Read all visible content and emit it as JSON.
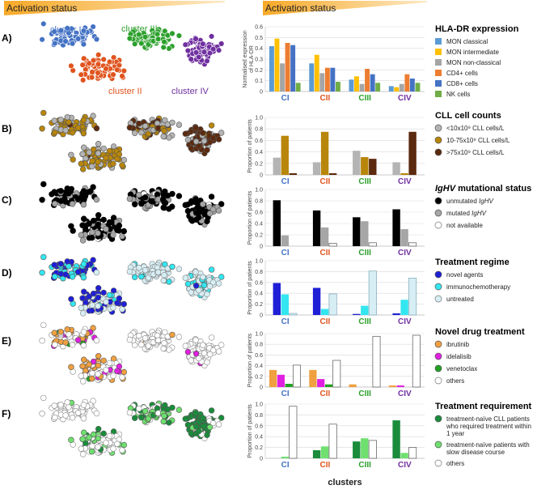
{
  "header": {
    "left_label": "Activation status",
    "right_label": "Activation status",
    "gradient_color": "#f7a928"
  },
  "xlabel": "clusters",
  "clusters": [
    "CI",
    "CII",
    "CIII",
    "CIV"
  ],
  "cluster_colors": [
    "#4472c4",
    "#e0541e",
    "#2ca02c",
    "#7030a0"
  ],
  "cluster_names": [
    "cluster I",
    "cluster II",
    "cluster III",
    "cluster IV"
  ],
  "chart_data": [
    {
      "panel": "A)",
      "type": "bar",
      "ylabel": "Normalised expression of HLA-DR",
      "ylim": [
        0,
        0.6
      ],
      "yticks": [
        "0",
        "0.1",
        "0.2",
        "0.3",
        "0.4",
        "0.5",
        "0.6"
      ],
      "categories": [
        "CI",
        "CII",
        "CIII",
        "CIV"
      ],
      "series": [
        {
          "name": "MON classical",
          "color": "#5b9bd5",
          "fill": "#5b9bd5",
          "values": [
            0.42,
            0.26,
            0.11,
            0.05
          ]
        },
        {
          "name": "MON intermediate",
          "color": "#ffc000",
          "fill": "#ffc000",
          "values": [
            0.49,
            0.34,
            0.14,
            0.04
          ]
        },
        {
          "name": "MON non-classical",
          "color": "#a5a5a5",
          "fill": "#a5a5a5",
          "values": [
            0.26,
            0.17,
            0.07,
            0.07
          ]
        },
        {
          "name": "CD4+ cells",
          "color": "#ed7d31",
          "fill": "#ed7d31",
          "values": [
            0.45,
            0.22,
            0.21,
            0.16
          ]
        },
        {
          "name": "CD8+ cells",
          "color": "#4472c4",
          "fill": "#4472c4",
          "values": [
            0.43,
            0.22,
            0.16,
            0.12
          ]
        },
        {
          "name": "NK cells",
          "color": "#70ad47",
          "fill": "#70ad47",
          "values": [
            0.08,
            0.09,
            0.08,
            0.08
          ]
        }
      ],
      "legend_title": "HLA-DR expression"
    },
    {
      "panel": "B)",
      "type": "bar",
      "ylabel": "Proportion of patients",
      "ylim": [
        0,
        1.0
      ],
      "yticks": [
        "0",
        "0.2",
        "0.4",
        "0.6",
        "0.8",
        "1.0"
      ],
      "categories": [
        "CI",
        "CII",
        "CIII",
        "CIV"
      ],
      "series": [
        {
          "name": "<10x10⁹ CLL cells/L",
          "color": "#b4b4b4",
          "fill": "#b4b4b4",
          "values": [
            0.3,
            0.22,
            0.42,
            0.22
          ]
        },
        {
          "name": "10-75x10⁹ CLL cells/L",
          "color": "#b8860b",
          "fill": "#b8860b",
          "values": [
            0.68,
            0.75,
            0.31,
            0.03
          ]
        },
        {
          "name": ">75x10⁹ CLL cells/L",
          "color": "#5c2a0e",
          "fill": "#5c2a0e",
          "values": [
            0.03,
            0.03,
            0.28,
            0.75
          ]
        }
      ],
      "legend_title": "CLL cell counts"
    },
    {
      "panel": "C)",
      "type": "bar",
      "ylabel": "Proportion of patients",
      "ylim": [
        0,
        1.0
      ],
      "yticks": [
        "0",
        "0.2",
        "0.4",
        "0.6",
        "0.8",
        "1.0"
      ],
      "categories": [
        "CI",
        "CII",
        "CIII",
        "CIV"
      ],
      "series": [
        {
          "name": "unmutated IgHV",
          "color": "#000000",
          "fill": "#000000",
          "values": [
            0.81,
            0.63,
            0.51,
            0.65
          ]
        },
        {
          "name": "mutated IgHV",
          "color": "#a6a6a6",
          "fill": "#a6a6a6",
          "values": [
            0.19,
            0.33,
            0.44,
            0.3
          ]
        },
        {
          "name": "not available",
          "color": "#555555",
          "fill": "#ffffff",
          "values": [
            0.0,
            0.05,
            0.06,
            0.06
          ]
        }
      ],
      "legend_title": "IgHV mutational status"
    },
    {
      "panel": "D)",
      "type": "bar",
      "ylabel": "Proportion of patients",
      "ylim": [
        0,
        1.0
      ],
      "yticks": [
        "0",
        "0.2",
        "0.4",
        "0.6",
        "0.8",
        "1.0"
      ],
      "categories": [
        "CI",
        "CII",
        "CIII",
        "CIV"
      ],
      "series": [
        {
          "name": "novel agents",
          "color": "#1f1fd6",
          "fill": "#1f1fd6",
          "values": [
            0.59,
            0.5,
            0.02,
            0.03
          ]
        },
        {
          "name": "immunochemotherapy",
          "color": "#33e6f0",
          "fill": "#33e6f0",
          "values": [
            0.38,
            0.11,
            0.17,
            0.28
          ]
        },
        {
          "name": "untreated",
          "color": "#7fa7b8",
          "fill": "#d6eef4",
          "values": [
            0.03,
            0.39,
            0.81,
            0.68
          ]
        }
      ],
      "legend_title": "Treatment regime"
    },
    {
      "panel": "E)",
      "type": "bar",
      "ylabel": "Proportion of patients",
      "ylim": [
        0,
        1.0
      ],
      "yticks": [
        "0",
        "0.2",
        "0.4",
        "0.6",
        "0.8",
        "1.0"
      ],
      "categories": [
        "CI",
        "CII",
        "CIII",
        "CIV"
      ],
      "series": [
        {
          "name": "ibrutinib",
          "color": "#f0a040",
          "fill": "#f0a040",
          "values": [
            0.32,
            0.32,
            0.05,
            0.03
          ]
        },
        {
          "name": "idelalisib",
          "color": "#e020e0",
          "fill": "#e020e0",
          "values": [
            0.23,
            0.15,
            0.0,
            0.03
          ]
        },
        {
          "name": "venetoclax",
          "color": "#22a022",
          "fill": "#22a022",
          "values": [
            0.06,
            0.05,
            0.0,
            0.0
          ]
        },
        {
          "name": "others",
          "color": "#555555",
          "fill": "#ffffff",
          "values": [
            0.41,
            0.5,
            0.95,
            0.97
          ]
        }
      ],
      "legend_title": "Novel drug treatment"
    },
    {
      "panel": "F)",
      "type": "bar",
      "ylabel": "Proportion of patients",
      "ylim": [
        0,
        1.0
      ],
      "yticks": [
        "0",
        "0.2",
        "0.4",
        "0.6",
        "0.8",
        "1.0"
      ],
      "categories": [
        "CI",
        "CII",
        "CIII",
        "CIV"
      ],
      "series": [
        {
          "name": "treatment-naïve CLL patients who required treatment within 1 year",
          "color": "#1a8c3c",
          "fill": "#1a8c3c",
          "values": [
            0.0,
            0.15,
            0.31,
            0.7
          ]
        },
        {
          "name": "treatment-naïve patients with slow disease course",
          "color": "#6fe06f",
          "fill": "#6fe06f",
          "values": [
            0.03,
            0.22,
            0.37,
            0.1
          ]
        },
        {
          "name": "others",
          "color": "#555555",
          "fill": "#ffffff",
          "values": [
            0.96,
            0.63,
            0.33,
            0.2
          ]
        }
      ],
      "legend_title": "Treatment requirement"
    }
  ]
}
